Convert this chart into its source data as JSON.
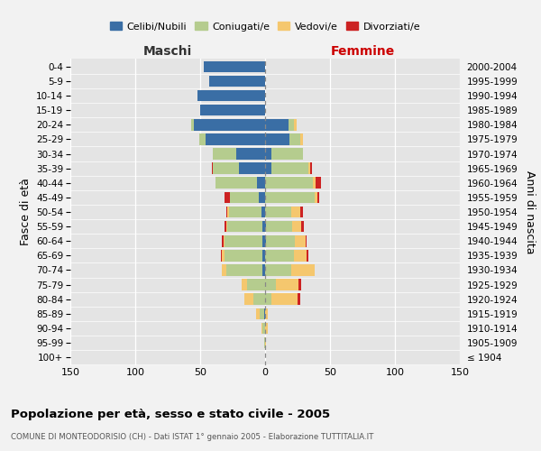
{
  "age_groups": [
    "100+",
    "95-99",
    "90-94",
    "85-89",
    "80-84",
    "75-79",
    "70-74",
    "65-69",
    "60-64",
    "55-59",
    "50-54",
    "45-49",
    "40-44",
    "35-39",
    "30-34",
    "25-29",
    "20-24",
    "15-19",
    "10-14",
    "5-9",
    "0-4"
  ],
  "birth_years": [
    "≤ 1904",
    "1905-1909",
    "1910-1914",
    "1915-1919",
    "1920-1924",
    "1925-1929",
    "1930-1934",
    "1935-1939",
    "1940-1944",
    "1945-1949",
    "1950-1954",
    "1955-1959",
    "1960-1964",
    "1965-1969",
    "1970-1974",
    "1975-1979",
    "1980-1984",
    "1985-1989",
    "1990-1994",
    "1995-1999",
    "2000-2004"
  ],
  "male_celibi": [
    0,
    0,
    0,
    1,
    0,
    0,
    2,
    2,
    2,
    2,
    3,
    5,
    6,
    20,
    22,
    46,
    55,
    50,
    52,
    43,
    47
  ],
  "male_coniugati": [
    0,
    1,
    2,
    3,
    9,
    14,
    28,
    29,
    29,
    27,
    25,
    22,
    32,
    20,
    18,
    5,
    2,
    0,
    0,
    0,
    0
  ],
  "male_vedovi": [
    0,
    0,
    1,
    3,
    7,
    4,
    3,
    2,
    1,
    1,
    1,
    0,
    0,
    0,
    0,
    0,
    0,
    0,
    0,
    0,
    0
  ],
  "male_divorziati": [
    0,
    0,
    0,
    0,
    0,
    0,
    0,
    1,
    1,
    1,
    1,
    4,
    0,
    1,
    0,
    0,
    0,
    0,
    0,
    0,
    0
  ],
  "female_nubili": [
    0,
    0,
    0,
    0,
    0,
    0,
    0,
    0,
    1,
    1,
    0,
    0,
    0,
    5,
    5,
    19,
    18,
    0,
    0,
    0,
    0
  ],
  "female_coniugate": [
    0,
    0,
    0,
    0,
    5,
    8,
    20,
    22,
    22,
    20,
    20,
    38,
    37,
    28,
    24,
    8,
    4,
    0,
    0,
    0,
    0
  ],
  "female_vedove": [
    0,
    1,
    2,
    2,
    20,
    18,
    18,
    10,
    8,
    7,
    7,
    2,
    2,
    2,
    0,
    2,
    2,
    0,
    0,
    0,
    0
  ],
  "female_divorziate": [
    0,
    0,
    0,
    0,
    2,
    2,
    0,
    1,
    1,
    2,
    2,
    2,
    4,
    1,
    0,
    0,
    0,
    0,
    0,
    0,
    0
  ],
  "color_celibi": "#3a6ea5",
  "color_coniugati": "#b5cc8e",
  "color_vedovi": "#f5c76e",
  "color_divorziati": "#cc2222",
  "xlim": 150,
  "legend_labels": [
    "Celibi/Nubili",
    "Coniugati/e",
    "Vedovi/e",
    "Divorziati/e"
  ],
  "title": "Popolazione per età, sesso e stato civile - 2005",
  "subtitle": "COMUNE DI MONTEODORISIO (CH) - Dati ISTAT 1° gennaio 2005 - Elaborazione TUTTITALIA.IT",
  "ylabel_left": "Fasce di età",
  "ylabel_right": "Anni di nascita",
  "header_maschi": "Maschi",
  "header_femmine": "Femmine",
  "bg_color": "#f2f2f2",
  "plot_bg_color": "#e4e4e4"
}
